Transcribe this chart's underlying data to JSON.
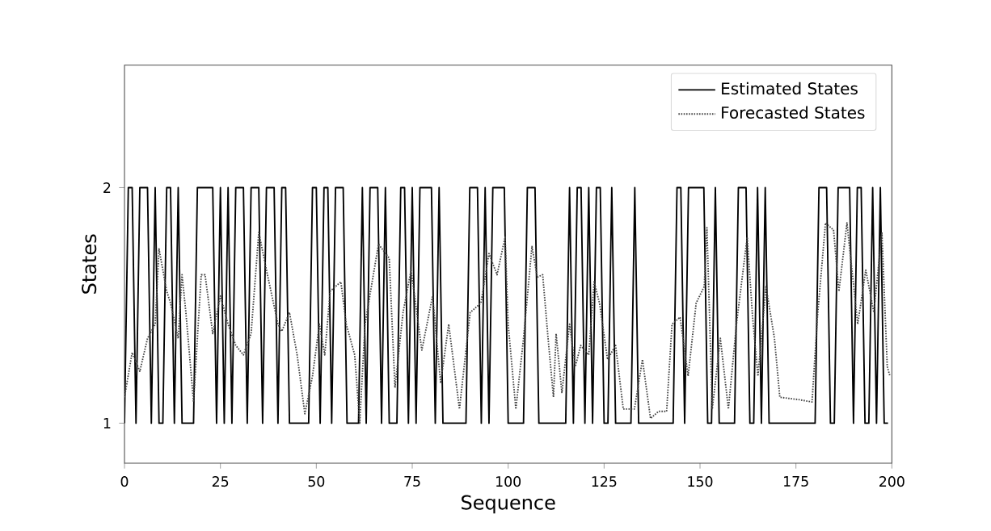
{
  "chart_data": {
    "type": "line",
    "xlabel": "Sequence",
    "ylabel": "States",
    "xlim": [
      0,
      200
    ],
    "xticks": [
      0,
      25,
      50,
      75,
      100,
      125,
      150,
      175,
      200
    ],
    "ylim": [
      0.83,
      2.52
    ],
    "yticks": [
      1,
      2
    ],
    "grid": false,
    "legend": "top right",
    "series": [
      {
        "name": "Estimated States",
        "color": "#000000",
        "line_style": "solid",
        "x": [
          0,
          1,
          2,
          3,
          4,
          5,
          6,
          7,
          8,
          9,
          10,
          11,
          12,
          13,
          14,
          15,
          16,
          17,
          18,
          19,
          20,
          21,
          22,
          23,
          24,
          25,
          26,
          27,
          28,
          29,
          30,
          31,
          32,
          33,
          34,
          35,
          36,
          37,
          38,
          39,
          40,
          41,
          42,
          43,
          44,
          45,
          46,
          47,
          48,
          49,
          50,
          51,
          52,
          53,
          54,
          55,
          56,
          57,
          58,
          59,
          60,
          61,
          62,
          63,
          64,
          65,
          66,
          67,
          68,
          69,
          70,
          71,
          72,
          73,
          74,
          75,
          76,
          77,
          78,
          79,
          80,
          81,
          82,
          83,
          84,
          85,
          86,
          87,
          88,
          89,
          90,
          91,
          92,
          93,
          94,
          95,
          96,
          97,
          98,
          99,
          100,
          101,
          102,
          103,
          104,
          105,
          106,
          107,
          108,
          109,
          110,
          111,
          112,
          113,
          114,
          115,
          116,
          117,
          118,
          119,
          120,
          121,
          122,
          123,
          124,
          125,
          126,
          127,
          128,
          129,
          130,
          131,
          132,
          133,
          134,
          135,
          136,
          137,
          138,
          139,
          140,
          141,
          142,
          143,
          144,
          145,
          146,
          147,
          148,
          149,
          150,
          151,
          152,
          153,
          154,
          155,
          156,
          157,
          158,
          159,
          160,
          161,
          162,
          163,
          164,
          165,
          166,
          167,
          168,
          169,
          170,
          171,
          172,
          173,
          174,
          175,
          176,
          177,
          178,
          179,
          180,
          181,
          182,
          183,
          184,
          185,
          186,
          187,
          188,
          189,
          190,
          191,
          192,
          193,
          194,
          195,
          196,
          197,
          198,
          199
        ],
        "values": [
          1,
          2,
          2,
          1,
          2,
          2,
          2,
          1,
          2,
          1,
          1,
          2,
          2,
          1,
          2,
          1,
          1,
          1,
          1,
          2,
          2,
          2,
          2,
          2,
          1,
          2,
          1,
          2,
          1,
          2,
          2,
          2,
          1,
          2,
          2,
          2,
          1,
          2,
          2,
          2,
          1,
          2,
          2,
          1,
          1,
          1,
          1,
          1,
          1,
          2,
          2,
          1,
          2,
          2,
          1,
          2,
          2,
          2,
          1,
          1,
          1,
          1,
          2,
          1,
          2,
          2,
          2,
          1,
          2,
          1,
          1,
          1,
          2,
          2,
          1,
          2,
          1,
          2,
          2,
          2,
          2,
          1,
          2,
          1,
          1,
          1,
          1,
          1,
          1,
          1,
          2,
          2,
          2,
          1,
          2,
          1,
          2,
          2,
          2,
          2,
          1,
          1,
          1,
          1,
          1,
          2,
          2,
          2,
          1,
          1,
          1,
          1,
          1,
          1,
          1,
          1,
          2,
          1,
          2,
          2,
          1,
          2,
          1,
          2,
          2,
          1,
          1,
          2,
          1,
          1,
          1,
          1,
          1,
          2,
          1,
          1,
          1,
          1,
          1,
          1,
          1,
          1,
          1,
          1,
          2,
          2,
          1,
          2,
          2,
          2,
          2,
          2,
          1,
          1,
          2,
          1,
          1,
          1,
          1,
          1,
          2,
          2,
          2,
          1,
          1,
          2,
          1,
          2,
          1,
          1,
          1,
          1,
          1,
          1,
          1,
          1,
          1,
          1,
          1,
          1,
          1,
          2,
          2,
          2,
          1,
          1,
          2,
          2,
          2,
          2,
          1,
          2,
          2,
          1,
          1,
          2,
          1,
          2,
          1,
          1
        ]
      },
      {
        "name": "Forecasted States",
        "color": "#444444",
        "line_style": "dotted",
        "x": [
          0,
          2,
          4,
          6,
          8,
          9,
          11,
          12,
          14,
          15,
          16,
          18,
          20,
          21,
          23,
          25,
          27,
          29,
          31,
          33,
          35,
          37,
          40,
          41,
          43,
          45,
          47,
          49,
          50.8,
          52.2,
          53.6,
          56.4,
          57.8,
          60,
          61.3,
          62.7,
          66.2,
          69,
          70.5,
          72.6,
          74.7,
          77.5,
          80.3,
          82.4,
          84.5,
          87.3,
          90.1,
          92.9,
          95,
          97.1,
          99.2,
          100,
          102,
          104,
          106.2,
          107.6,
          109,
          110.4,
          111.8,
          112.5,
          114,
          116,
          117.5,
          118.9,
          121,
          122.4,
          123.8,
          125.9,
          128,
          130,
          132.9,
          135,
          137.1,
          139.2,
          141.3,
          142.7,
          144.8,
          146.9,
          149,
          151.1,
          151.8,
          153.2,
          155.3,
          157.4,
          159.5,
          162.3,
          163.7,
          165.1,
          167.2,
          169.4,
          170.8,
          175.7,
          179.2,
          180.6,
          182.7,
          184.8,
          186.2,
          188.3,
          191.1,
          193.2,
          195.3,
          197.4,
          198.8,
          199.5
        ],
        "values": [
          1.11,
          1.3,
          1.22,
          1.36,
          1.42,
          1.74,
          1.56,
          1.51,
          1.36,
          1.63,
          1.47,
          1.09,
          1.63,
          1.63,
          1.38,
          1.54,
          1.42,
          1.33,
          1.29,
          1.38,
          1.81,
          1.65,
          1.42,
          1.39,
          1.47,
          1.29,
          1.04,
          1.2,
          1.42,
          1.29,
          1.56,
          1.6,
          1.42,
          1.29,
          1.0,
          1.42,
          1.76,
          1.7,
          1.15,
          1.47,
          1.65,
          1.31,
          1.54,
          1.17,
          1.42,
          1.06,
          1.47,
          1.51,
          1.72,
          1.63,
          1.79,
          1.42,
          1.06,
          1.36,
          1.75,
          1.62,
          1.63,
          1.36,
          1.11,
          1.38,
          1.13,
          1.42,
          1.24,
          1.33,
          1.29,
          1.6,
          1.51,
          1.27,
          1.33,
          1.06,
          1.06,
          1.27,
          1.02,
          1.05,
          1.05,
          1.42,
          1.45,
          1.2,
          1.51,
          1.58,
          1.83,
          1.06,
          1.36,
          1.06,
          1.42,
          1.79,
          1.45,
          1.2,
          1.58,
          1.36,
          1.11,
          1.1,
          1.09,
          1.45,
          1.85,
          1.82,
          1.56,
          1.85,
          1.42,
          1.65,
          1.47,
          1.81,
          1.24,
          1.2
        ]
      }
    ]
  }
}
